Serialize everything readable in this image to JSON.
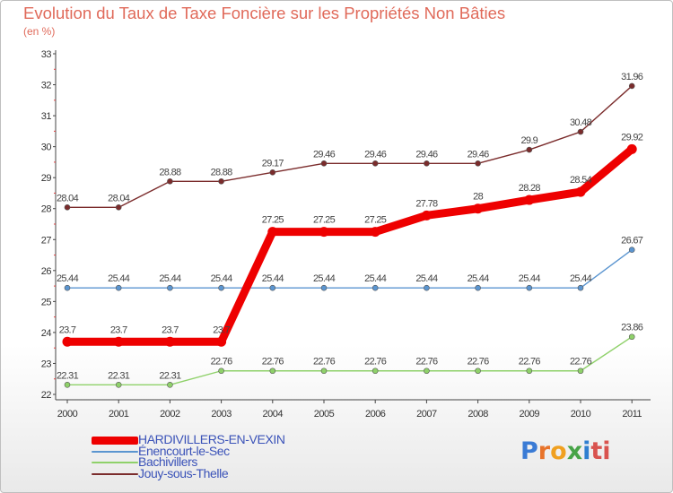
{
  "title": "Evolution du Taux de Taxe Foncière sur les Propriétés Non Bâties",
  "subtitle": "(en %)",
  "logo": {
    "text": "Proxiti",
    "letters": [
      "P",
      "r",
      "o",
      "x",
      "i",
      "ti"
    ]
  },
  "chart_data": {
    "type": "line",
    "x": [
      "2000",
      "2001",
      "2002",
      "2003",
      "2004",
      "2005",
      "2006",
      "2007",
      "2008",
      "2009",
      "2010",
      "2011"
    ],
    "ylim": [
      22,
      33
    ],
    "yticks": [
      "22",
      "23",
      "24",
      "25",
      "26",
      "27",
      "28",
      "29",
      "30",
      "31",
      "32",
      "33"
    ],
    "grid": false,
    "legend_position": "bottom-left",
    "series": [
      {
        "name": "Jouy-sous-Thelle",
        "color": "#7b2c2c",
        "values": [
          28.04,
          28.04,
          28.88,
          28.88,
          29.17,
          29.46,
          29.46,
          29.46,
          29.46,
          29.9,
          30.48,
          31.96
        ],
        "labels": [
          "28.04",
          "28.04",
          "28.88",
          "28.88",
          "29.17",
          "29.46",
          "29.46",
          "29.46",
          "29.46",
          "29.9",
          "30.48",
          "31.96"
        ]
      },
      {
        "name": "Énencourt-le-Sec",
        "color": "#5b95d0",
        "values": [
          25.44,
          25.44,
          25.44,
          25.44,
          25.44,
          25.44,
          25.44,
          25.44,
          25.44,
          25.44,
          25.44,
          26.67
        ],
        "labels": [
          "25.44",
          "25.44",
          "25.44",
          "25.44",
          "25.44",
          "25.44",
          "25.44",
          "25.44",
          "25.44",
          "25.44",
          "25.44",
          "26.67"
        ]
      },
      {
        "name": "Bachivillers",
        "color": "#8fd16a",
        "values": [
          22.31,
          22.31,
          22.31,
          22.76,
          22.76,
          22.76,
          22.76,
          22.76,
          22.76,
          22.76,
          22.76,
          23.86
        ],
        "labels": [
          "22.31",
          "22.31",
          "22.31",
          "22.76",
          "22.76",
          "22.76",
          "22.76",
          "22.76",
          "22.76",
          "22.76",
          "22.76",
          "23.86"
        ]
      },
      {
        "name": "HARDIVILLERS-EN-VEXIN",
        "color": "#ee0000",
        "values": [
          23.7,
          23.7,
          23.7,
          23.7,
          27.25,
          27.25,
          27.25,
          27.78,
          28,
          28.28,
          28.54,
          29.92
        ],
        "labels": [
          "23.7",
          "23.7",
          "23.7",
          "23.7",
          "27.25",
          "27.25",
          "27.25",
          "27.78",
          "28",
          "28.28",
          "28.54",
          "29.92"
        ]
      }
    ]
  },
  "legend": [
    {
      "name": "HARDIVILLERS-EN-VEXIN",
      "color": "#ee0000",
      "thick": true
    },
    {
      "name": "Énencourt-le-Sec",
      "color": "#5b95d0",
      "thick": false
    },
    {
      "name": "Bachivillers",
      "color": "#8fd16a",
      "thick": false
    },
    {
      "name": "Jouy-sous-Thelle",
      "color": "#7b2c2c",
      "thick": false
    }
  ]
}
